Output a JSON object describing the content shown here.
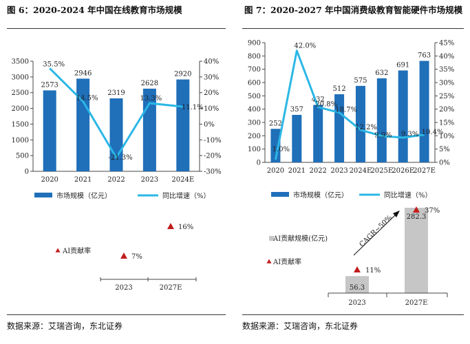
{
  "fig6": {
    "title": "图 6：2020-2024 年中国在线教育市场规模",
    "source": "数据来源：艾瑞咨询，东北证券",
    "chart_data": {
      "type": "bar",
      "categories": [
        "2020",
        "2021",
        "2022",
        "2023",
        "2024E"
      ],
      "series": [
        {
          "name": "市场规模（亿元）",
          "kind": "bar",
          "axis": "left",
          "values": [
            2573,
            2946,
            2319,
            2628,
            2920
          ],
          "labels": [
            "2573",
            "2946",
            "2319",
            "2628",
            "2920"
          ]
        },
        {
          "name": "同比增速（%）",
          "kind": "line",
          "axis": "right",
          "values": [
            35.5,
            14.5,
            -21.3,
            13.3,
            11.1
          ],
          "labels": [
            "35.5%",
            "14.5%",
            "-21.3%",
            "13.3%",
            "11.1%"
          ]
        }
      ],
      "ylim_left": [
        0,
        3500
      ],
      "yticks_left": [
        "0",
        "500",
        "1000",
        "1500",
        "2000",
        "2500",
        "3000",
        "3500"
      ],
      "ylim_right": [
        -30,
        40
      ],
      "yticks_right": [
        "-30%",
        "-20%",
        "-10%",
        "0%",
        "10%",
        "20%",
        "30%",
        "40%"
      ],
      "legend_position": "bottom"
    },
    "ai_chart": {
      "type": "scatter",
      "categories": [
        "2023",
        "2027E"
      ],
      "series": [
        {
          "name": "AI贡献率",
          "values": [
            7,
            16
          ],
          "labels": [
            "7%",
            "16%"
          ]
        }
      ]
    }
  },
  "fig7": {
    "title": "图 7：2020-2027 年中国消费级教育智能硬件市场规模",
    "source": "数据来源：艾瑞咨询，东北证券",
    "chart_data": {
      "type": "bar",
      "categories": [
        "2020",
        "2021",
        "2022",
        "2023",
        "2024E",
        "2025E",
        "2026E",
        "2027E"
      ],
      "series": [
        {
          "name": "市场规模（亿元）",
          "kind": "bar",
          "axis": "left",
          "values": [
            252,
            357,
            432,
            512,
            575,
            632,
            691,
            763
          ],
          "labels": [
            "252",
            "357",
            "432",
            "512",
            "575",
            "632",
            "691",
            "763"
          ]
        },
        {
          "name": "同比增速（%）",
          "kind": "line",
          "axis": "right",
          "values": [
            1.0,
            42.0,
            20.8,
            18.7,
            12.2,
            9.9,
            9.3,
            10.4
          ],
          "labels": [
            "1.0%",
            "42.0%",
            "20.8%",
            "18.7%",
            "12.2%",
            "9.9%",
            "9.3%",
            "10.4%"
          ]
        }
      ],
      "ylim_left": [
        0,
        900
      ],
      "yticks_left": [
        "0",
        "100",
        "200",
        "300",
        "400",
        "500",
        "600",
        "700",
        "800",
        "900"
      ],
      "ylim_right": [
        0,
        45
      ],
      "yticks_right": [
        "0%",
        "5%",
        "10%",
        "15%",
        "20%",
        "25%",
        "30%",
        "35%",
        "40%",
        "45%"
      ],
      "legend_position": "bottom"
    },
    "ai_chart": {
      "type": "bar",
      "categories": [
        "2023",
        "2027E"
      ],
      "series": [
        {
          "name": "AI贡献规模(亿元)",
          "kind": "bar",
          "values": [
            56.3,
            282.3
          ],
          "labels": [
            "56.3",
            "282.3"
          ]
        },
        {
          "name": "AI贡献率",
          "kind": "marker",
          "values": [
            11,
            37
          ],
          "labels": [
            "11%",
            "37%"
          ]
        }
      ],
      "annotation": "CAGR~50%"
    }
  },
  "colors": {
    "bar": "#1f6fb9",
    "line": "#2ab7e6",
    "marker": "#c21d1d",
    "ai_bar": "#c6c6c6",
    "axis": "#444444"
  }
}
